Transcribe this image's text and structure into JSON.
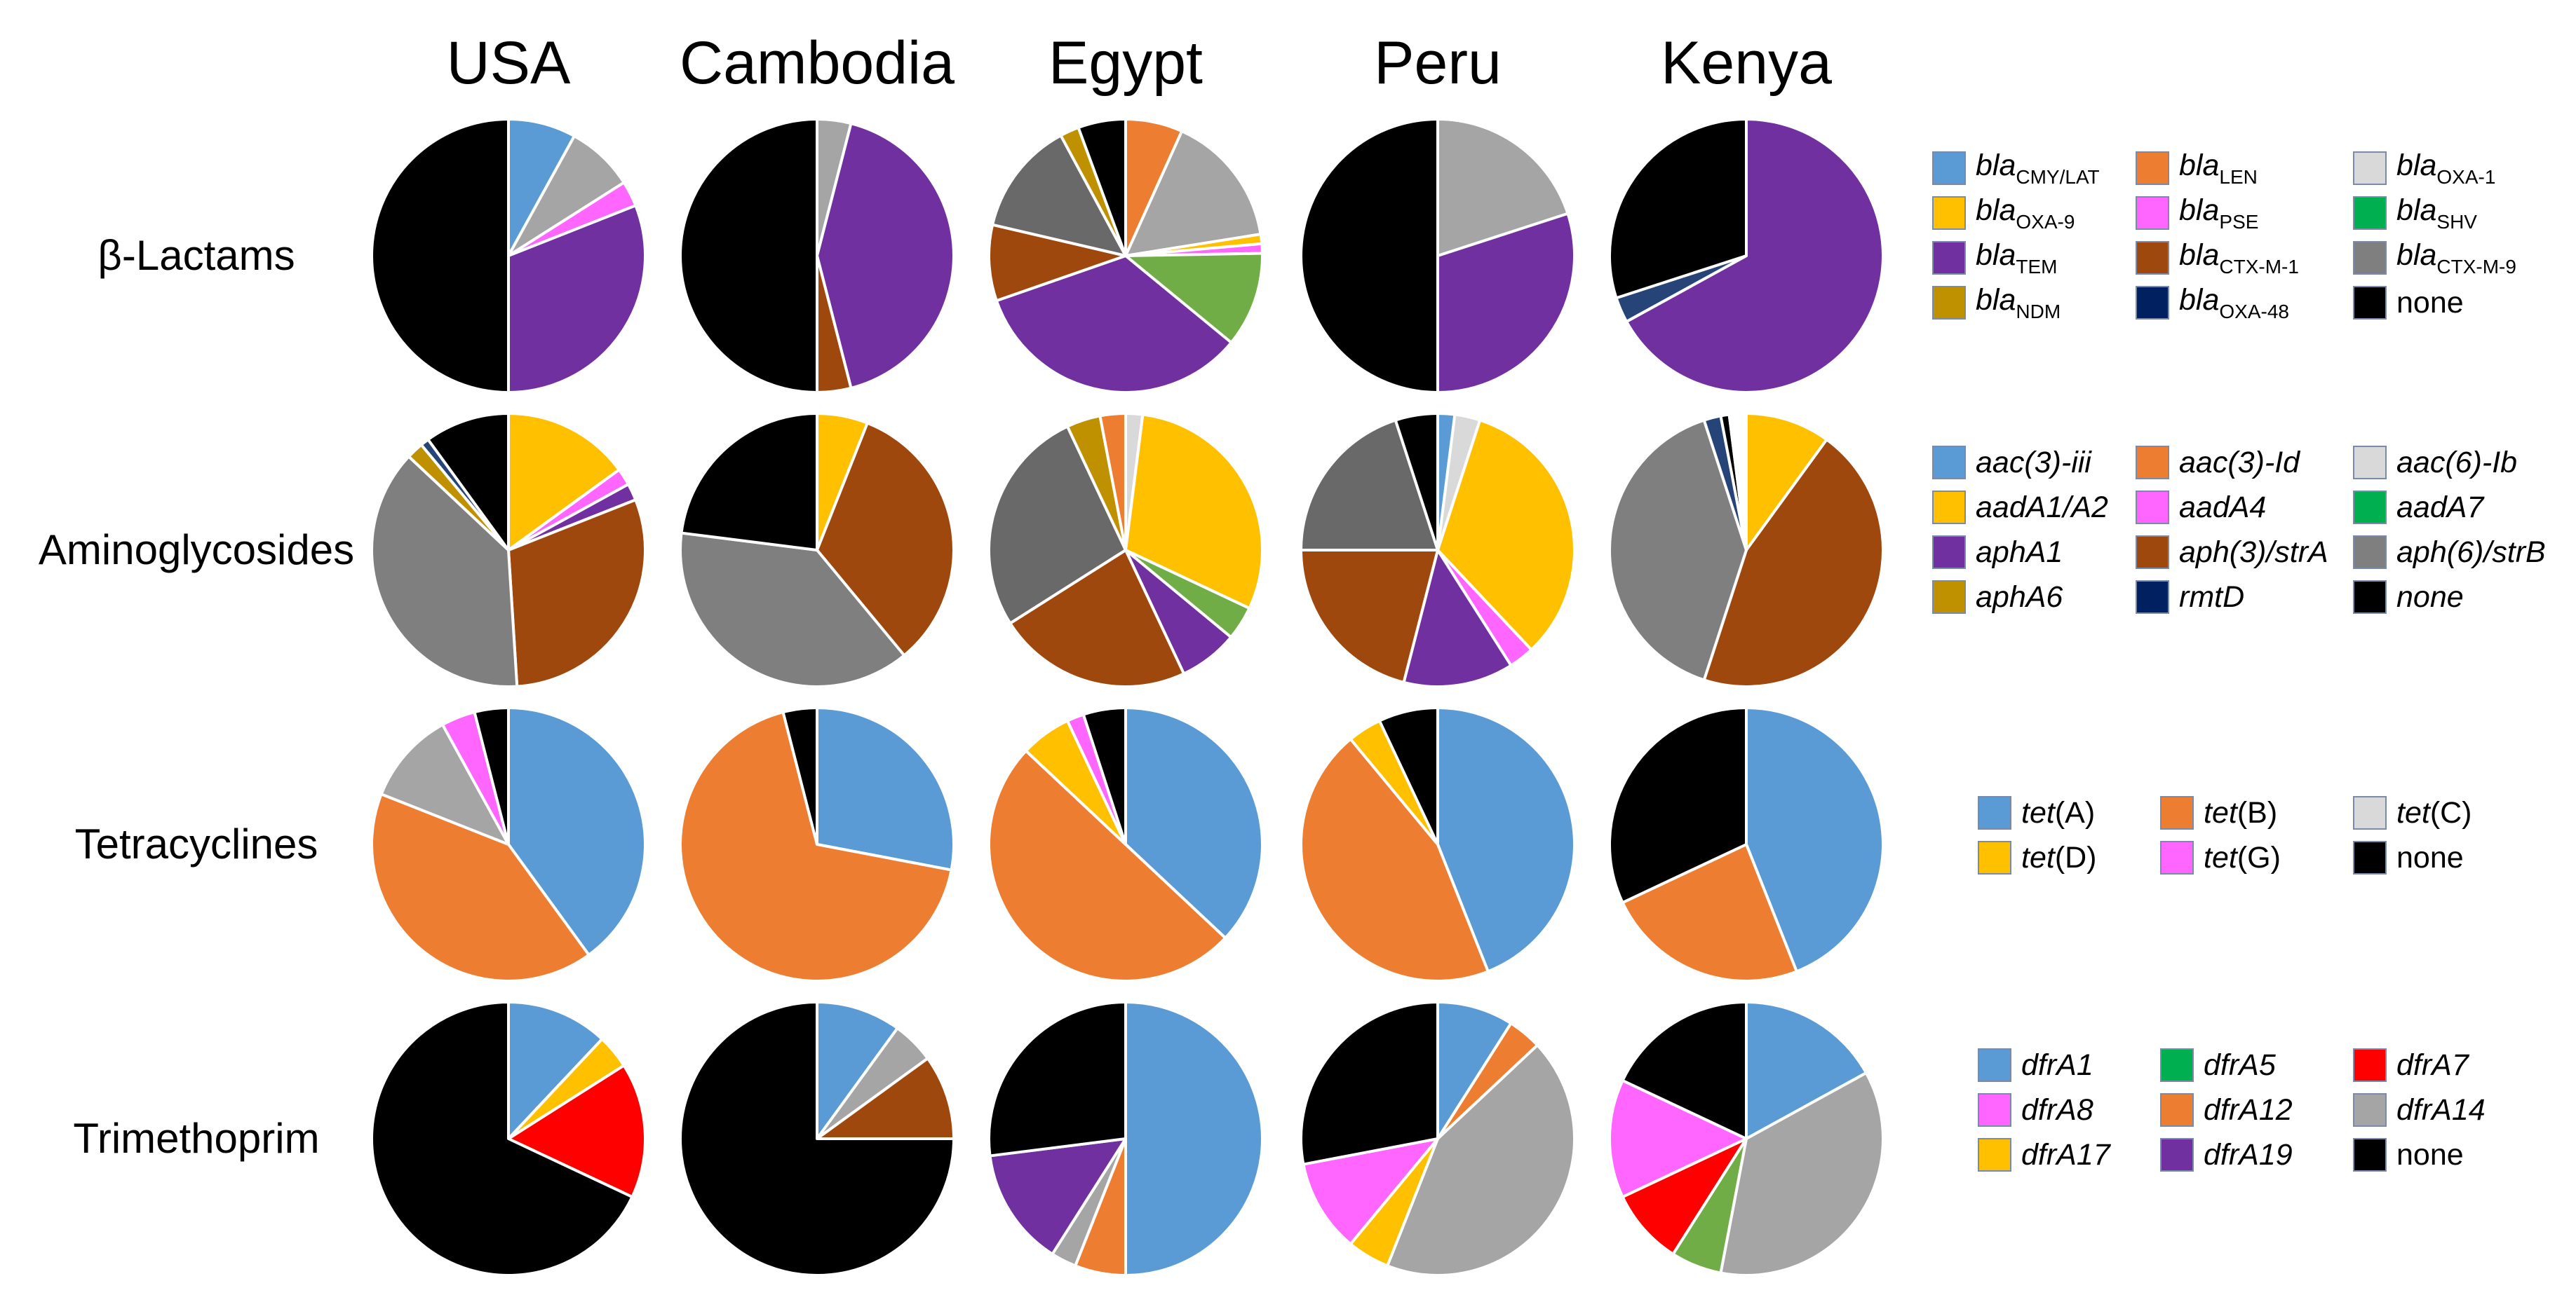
{
  "chart_data": {
    "type": "pie",
    "columns": [
      "USA",
      "Cambodia",
      "Egypt",
      "Peru",
      "Kenya"
    ],
    "rows": [
      {
        "label": "β-Lactams",
        "legend": [
          {
            "parts": [
              {
                "t": "bla",
                "s": "i"
              },
              {
                "t": "CMY/LAT",
                "s": "sub"
              }
            ],
            "color": "#5b9bd5"
          },
          {
            "parts": [
              {
                "t": "bla",
                "s": "i"
              },
              {
                "t": "LEN",
                "s": "sub"
              }
            ],
            "color": "#ed7d31"
          },
          {
            "parts": [
              {
                "t": "bla",
                "s": "i"
              },
              {
                "t": "OXA-1",
                "s": "sub"
              }
            ],
            "color": "#d9d9d9"
          },
          {
            "parts": [
              {
                "t": "bla",
                "s": "i"
              },
              {
                "t": "OXA-9",
                "s": "sub"
              }
            ],
            "color": "#ffc000"
          },
          {
            "parts": [
              {
                "t": "bla",
                "s": "i"
              },
              {
                "t": "PSE",
                "s": "sub"
              }
            ],
            "color": "#ff66ff"
          },
          {
            "parts": [
              {
                "t": "bla",
                "s": "i"
              },
              {
                "t": "SHV",
                "s": "sub"
              }
            ],
            "color": "#00b050"
          },
          {
            "parts": [
              {
                "t": "bla",
                "s": "i"
              },
              {
                "t": "TEM",
                "s": "sub"
              }
            ],
            "color": "#7030a0"
          },
          {
            "parts": [
              {
                "t": "bla",
                "s": "i"
              },
              {
                "t": "CTX-M-1",
                "s": "sub"
              }
            ],
            "color": "#9e480e"
          },
          {
            "parts": [
              {
                "t": "bla",
                "s": "i"
              },
              {
                "t": "CTX-M-9",
                "s": "sub"
              }
            ],
            "color": "#7f7f7f"
          },
          {
            "parts": [
              {
                "t": "bla",
                "s": "i"
              },
              {
                "t": "NDM",
                "s": "sub"
              }
            ],
            "color": "#bf9000"
          },
          {
            "parts": [
              {
                "t": "bla",
                "s": "i"
              },
              {
                "t": "OXA-48",
                "s": "sub"
              }
            ],
            "color": "#002060"
          },
          {
            "parts": [
              {
                "t": "none",
                "s": "n"
              }
            ],
            "color": "#000000"
          }
        ],
        "pies": [
          [
            {
              "c": "#5b9bd5",
              "v": 8
            },
            {
              "c": "#a5a5a5",
              "v": 8
            },
            {
              "c": "#ff66ff",
              "v": 3
            },
            {
              "c": "#7030a0",
              "v": 31
            },
            {
              "c": "#000000",
              "v": 50
            }
          ],
          [
            {
              "c": "#a5a5a5",
              "v": 4
            },
            {
              "c": "#7030a0",
              "v": 42
            },
            {
              "c": "#9e480e",
              "v": 4
            },
            {
              "c": "#000000",
              "v": 50
            }
          ],
          [
            {
              "c": "#ed7d31",
              "v": 6
            },
            {
              "c": "#a5a5a5",
              "v": 14
            },
            {
              "c": "#ffc000",
              "v": 1
            },
            {
              "c": "#ff66ff",
              "v": 1
            },
            {
              "c": "#70ad47",
              "v": 10
            },
            {
              "c": "#7030a0",
              "v": 30
            },
            {
              "c": "#9e480e",
              "v": 8
            },
            {
              "c": "#696969",
              "v": 12
            },
            {
              "c": "#bf9000",
              "v": 2
            },
            {
              "c": "#000000",
              "v": 5
            }
          ],
          [
            {
              "c": "#a5a5a5",
              "v": 20
            },
            {
              "c": "#7030a0",
              "v": 30
            },
            {
              "c": "#000000",
              "v": 50
            }
          ],
          [
            {
              "c": "#7030a0",
              "v": 67
            },
            {
              "c": "#264478",
              "v": 3
            },
            {
              "c": "#000000",
              "v": 30
            }
          ]
        ]
      },
      {
        "label": "Aminoglycosides",
        "legend": [
          {
            "parts": [
              {
                "t": "aac(3)-iii",
                "s": "i"
              }
            ],
            "color": "#5b9bd5"
          },
          {
            "parts": [
              {
                "t": "aac(3)-Id",
                "s": "i"
              }
            ],
            "color": "#ed7d31"
          },
          {
            "parts": [
              {
                "t": "aac(6)-Ib",
                "s": "i"
              }
            ],
            "color": "#d9d9d9"
          },
          {
            "parts": [
              {
                "t": "aadA1/A2",
                "s": "i"
              }
            ],
            "color": "#ffc000"
          },
          {
            "parts": [
              {
                "t": "aadA4",
                "s": "i"
              }
            ],
            "color": "#ff66ff"
          },
          {
            "parts": [
              {
                "t": "aadA7",
                "s": "i"
              }
            ],
            "color": "#00b050"
          },
          {
            "parts": [
              {
                "t": "aphA1",
                "s": "i"
              }
            ],
            "color": "#7030a0"
          },
          {
            "parts": [
              {
                "t": "aph(3)/strA",
                "s": "i"
              }
            ],
            "color": "#9e480e"
          },
          {
            "parts": [
              {
                "t": "aph(6)/strB",
                "s": "i"
              }
            ],
            "color": "#7f7f7f"
          },
          {
            "parts": [
              {
                "t": "aphA6",
                "s": "i"
              }
            ],
            "color": "#bf9000"
          },
          {
            "parts": [
              {
                "t": "rmtD",
                "s": "i"
              }
            ],
            "color": "#002060"
          },
          {
            "parts": [
              {
                "t": "none",
                "s": "i"
              }
            ],
            "color": "#000000"
          }
        ],
        "pies": [
          [
            {
              "c": "#ffc000",
              "v": 15
            },
            {
              "c": "#ff66ff",
              "v": 2
            },
            {
              "c": "#7030a0",
              "v": 2
            },
            {
              "c": "#9e480e",
              "v": 30
            },
            {
              "c": "#7f7f7f",
              "v": 38
            },
            {
              "c": "#bf9000",
              "v": 2
            },
            {
              "c": "#264478",
              "v": 1
            },
            {
              "c": "#000000",
              "v": 10
            }
          ],
          [
            {
              "c": "#ffc000",
              "v": 6
            },
            {
              "c": "#9e480e",
              "v": 33
            },
            {
              "c": "#7f7f7f",
              "v": 38
            },
            {
              "c": "#000000",
              "v": 23
            }
          ],
          [
            {
              "c": "#d9d9d9",
              "v": 2
            },
            {
              "c": "#ffc000",
              "v": 30
            },
            {
              "c": "#70ad47",
              "v": 4
            },
            {
              "c": "#7030a0",
              "v": 7
            },
            {
              "c": "#9e480e",
              "v": 23
            },
            {
              "c": "#696969",
              "v": 27
            },
            {
              "c": "#bf9000",
              "v": 4
            },
            {
              "c": "#ed7d31",
              "v": 3
            }
          ],
          [
            {
              "c": "#5b9bd5",
              "v": 2
            },
            {
              "c": "#d9d9d9",
              "v": 3
            },
            {
              "c": "#ffc000",
              "v": 33
            },
            {
              "c": "#ff66ff",
              "v": 3
            },
            {
              "c": "#7030a0",
              "v": 13
            },
            {
              "c": "#9e480e",
              "v": 21
            },
            {
              "c": "#696969",
              "v": 20
            },
            {
              "c": "#000000",
              "v": 5
            }
          ],
          [
            {
              "c": "#ffc000",
              "v": 10
            },
            {
              "c": "#9e480e",
              "v": 45
            },
            {
              "c": "#7f7f7f",
              "v": 40
            },
            {
              "c": "#264478",
              "v": 2
            },
            {
              "c": "#000000",
              "v": 1
            },
            {
              "c": "#ffffff",
              "v": 2
            }
          ]
        ]
      },
      {
        "label": "Tetracyclines",
        "legend": [
          {
            "parts": [
              {
                "t": "tet",
                "s": "i"
              },
              {
                "t": "(A)",
                "s": "n"
              }
            ],
            "color": "#5b9bd5"
          },
          {
            "parts": [
              {
                "t": "tet",
                "s": "i"
              },
              {
                "t": "(B)",
                "s": "n"
              }
            ],
            "color": "#ed7d31"
          },
          {
            "parts": [
              {
                "t": "tet",
                "s": "i"
              },
              {
                "t": "(C)",
                "s": "n"
              }
            ],
            "color": "#d9d9d9"
          },
          {
            "parts": [
              {
                "t": "tet",
                "s": "i"
              },
              {
                "t": "(D)",
                "s": "n"
              }
            ],
            "color": "#ffc000"
          },
          {
            "parts": [
              {
                "t": "tet",
                "s": "i"
              },
              {
                "t": "(G)",
                "s": "n"
              }
            ],
            "color": "#ff66ff"
          },
          {
            "parts": [
              {
                "t": "none",
                "s": "n"
              }
            ],
            "color": "#000000"
          }
        ],
        "pies": [
          [
            {
              "c": "#5b9bd5",
              "v": 40
            },
            {
              "c": "#ed7d31",
              "v": 41
            },
            {
              "c": "#a5a5a5",
              "v": 11
            },
            {
              "c": "#ff66ff",
              "v": 4
            },
            {
              "c": "#000000",
              "v": 4
            }
          ],
          [
            {
              "c": "#5b9bd5",
              "v": 28
            },
            {
              "c": "#ed7d31",
              "v": 68
            },
            {
              "c": "#000000",
              "v": 4
            }
          ],
          [
            {
              "c": "#5b9bd5",
              "v": 37
            },
            {
              "c": "#ed7d31",
              "v": 50
            },
            {
              "c": "#ffc000",
              "v": 6
            },
            {
              "c": "#ff66ff",
              "v": 2
            },
            {
              "c": "#000000",
              "v": 5
            }
          ],
          [
            {
              "c": "#5b9bd5",
              "v": 44
            },
            {
              "c": "#ed7d31",
              "v": 45
            },
            {
              "c": "#ffc000",
              "v": 4
            },
            {
              "c": "#000000",
              "v": 7
            }
          ],
          [
            {
              "c": "#5b9bd5",
              "v": 44
            },
            {
              "c": "#ed7d31",
              "v": 24
            },
            {
              "c": "#000000",
              "v": 32
            }
          ]
        ]
      },
      {
        "label": "Trimethoprim",
        "legend": [
          {
            "parts": [
              {
                "t": "dfrA1",
                "s": "i"
              }
            ],
            "color": "#5b9bd5"
          },
          {
            "parts": [
              {
                "t": "dfrA5",
                "s": "i"
              }
            ],
            "color": "#00b050"
          },
          {
            "parts": [
              {
                "t": "dfrA7",
                "s": "i"
              }
            ],
            "color": "#ff0000"
          },
          {
            "parts": [
              {
                "t": "dfrA8",
                "s": "i"
              }
            ],
            "color": "#ff66ff"
          },
          {
            "parts": [
              {
                "t": "dfrA12",
                "s": "i"
              }
            ],
            "color": "#ed7d31"
          },
          {
            "parts": [
              {
                "t": "dfrA14",
                "s": "i"
              }
            ],
            "color": "#a5a5a5"
          },
          {
            "parts": [
              {
                "t": "dfrA17",
                "s": "i"
              }
            ],
            "color": "#ffc000"
          },
          {
            "parts": [
              {
                "t": "dfrA19",
                "s": "i"
              }
            ],
            "color": "#7030a0"
          },
          {
            "parts": [
              {
                "t": "none",
                "s": "n"
              }
            ],
            "color": "#000000"
          }
        ],
        "pies": [
          [
            {
              "c": "#5b9bd5",
              "v": 12
            },
            {
              "c": "#ffc000",
              "v": 4
            },
            {
              "c": "#ff0000",
              "v": 16
            },
            {
              "c": "#000000",
              "v": 68
            }
          ],
          [
            {
              "c": "#5b9bd5",
              "v": 10
            },
            {
              "c": "#a5a5a5",
              "v": 5
            },
            {
              "c": "#9e480e",
              "v": 10
            },
            {
              "c": "#000000",
              "v": 75
            }
          ],
          [
            {
              "c": "#5b9bd5",
              "v": 50
            },
            {
              "c": "#ed7d31",
              "v": 6
            },
            {
              "c": "#a5a5a5",
              "v": 3
            },
            {
              "c": "#7030a0",
              "v": 14
            },
            {
              "c": "#000000",
              "v": 27
            }
          ],
          [
            {
              "c": "#5b9bd5",
              "v": 9
            },
            {
              "c": "#ed7d31",
              "v": 4
            },
            {
              "c": "#a5a5a5",
              "v": 43
            },
            {
              "c": "#ffc000",
              "v": 5
            },
            {
              "c": "#ff66ff",
              "v": 11
            },
            {
              "c": "#000000",
              "v": 28
            }
          ],
          [
            {
              "c": "#5b9bd5",
              "v": 17
            },
            {
              "c": "#a5a5a5",
              "v": 36
            },
            {
              "c": "#70ad47",
              "v": 6
            },
            {
              "c": "#ff0000",
              "v": 9
            },
            {
              "c": "#ff66ff",
              "v": 14
            },
            {
              "c": "#000000",
              "v": 18
            }
          ]
        ]
      }
    ]
  }
}
